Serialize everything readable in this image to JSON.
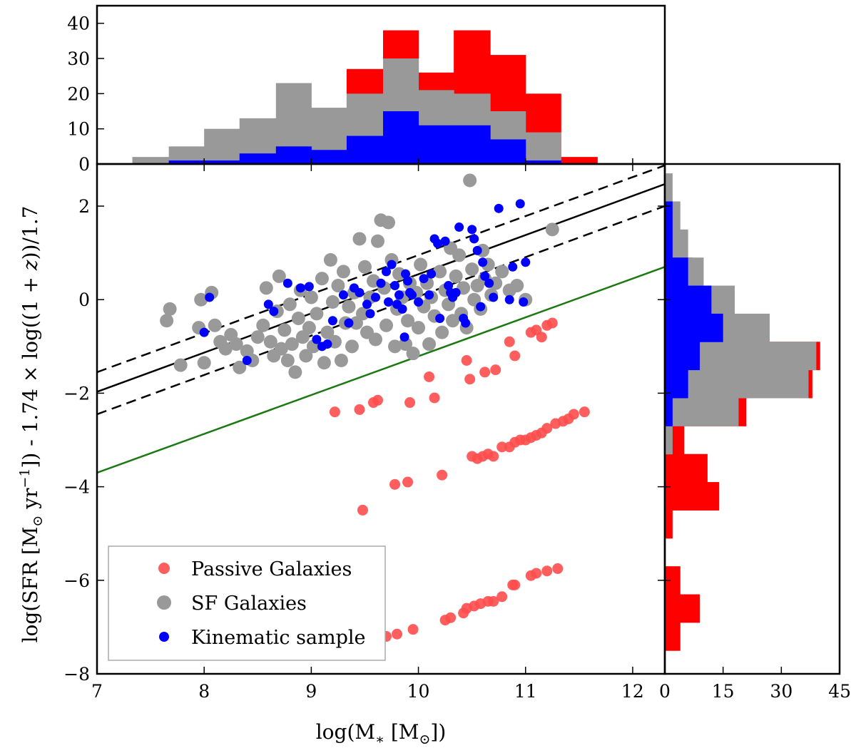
{
  "chart_data": {
    "type": "scatter",
    "title": "",
    "xlabel": "log(M_* [M_sun])",
    "ylabel": "log(SFR [M_sun yr^-1]) - 1.74 × log((1 + z))/1.7",
    "xlabel_parts": {
      "pre": "log(M",
      "sub": "∗",
      "mid": " [M",
      "sub2": "⊙",
      "post": "])"
    },
    "ylabel_parts": {
      "pre": "log(SFR [M",
      "sub": "⊙",
      "mid": " yr",
      "sup": "−1",
      "post": "]) - 1.74 × log((1 + ",
      "z": "z",
      "end": "))/1.7"
    },
    "xlim": [
      7,
      12.3
    ],
    "ylim": [
      -8,
      2.9
    ],
    "xticks": [
      7,
      8,
      9,
      10,
      11,
      12
    ],
    "xtick_labels": [
      "7",
      "8",
      "9",
      "10",
      "11",
      "12"
    ],
    "yticks": [
      2,
      0,
      -2,
      -4,
      -6,
      -8
    ],
    "ytick_labels": [
      "2",
      "0",
      "−2",
      "−4",
      "−6",
      "−8"
    ],
    "colors": {
      "passive": "#ff4d4d",
      "sf": "#999999",
      "kinematic": "#0000ff",
      "main_sequence": "#000000",
      "cut": "#1a7a10",
      "hist_red": "#ff0000",
      "hist_gray": "#999999",
      "hist_blue": "#0000ff"
    },
    "legend": {
      "position": "lower-left",
      "entries": [
        {
          "label": "Passive Galaxies",
          "color": "#ff4d4d"
        },
        {
          "label": "SF Galaxies",
          "color": "#999999"
        },
        {
          "label": "Kinematic sample",
          "color": "#0000ff"
        }
      ]
    },
    "lines": [
      {
        "name": "main-sequence",
        "style": "solid",
        "color": "#000000",
        "points": [
          [
            7,
            -1.97
          ],
          [
            12.3,
            2.47
          ]
        ]
      },
      {
        "name": "main-sequence-upper",
        "style": "dashed",
        "color": "#000000",
        "points": [
          [
            7,
            -1.55
          ],
          [
            12.3,
            2.87
          ]
        ]
      },
      {
        "name": "main-sequence-lower",
        "style": "dashed",
        "color": "#000000",
        "points": [
          [
            7,
            -2.45
          ],
          [
            12.3,
            2.0
          ]
        ]
      },
      {
        "name": "passive-cut",
        "style": "solid",
        "color": "#1a7a10",
        "points": [
          [
            7,
            -3.7
          ],
          [
            12.3,
            0.7
          ]
        ]
      }
    ],
    "series": [
      {
        "name": "SF Galaxies",
        "color": "#999999",
        "points": [
          [
            7.65,
            -0.45
          ],
          [
            7.68,
            -0.2
          ],
          [
            7.78,
            -1.4
          ],
          [
            7.95,
            -0.6
          ],
          [
            7.97,
            0.0
          ],
          [
            8.0,
            -1.35
          ],
          [
            8.07,
            0.15
          ],
          [
            8.1,
            -0.55
          ],
          [
            8.15,
            -0.9
          ],
          [
            8.2,
            -1.05
          ],
          [
            8.25,
            -0.75
          ],
          [
            8.3,
            -0.95
          ],
          [
            8.33,
            -1.45
          ],
          [
            8.4,
            -1.1
          ],
          [
            8.45,
            -1.3
          ],
          [
            8.5,
            -0.8
          ],
          [
            8.55,
            -0.55
          ],
          [
            8.58,
            0.25
          ],
          [
            8.62,
            -0.9
          ],
          [
            8.65,
            -1.2
          ],
          [
            8.68,
            -0.25
          ],
          [
            8.7,
            0.5
          ],
          [
            8.72,
            -1.05
          ],
          [
            8.75,
            -0.65
          ],
          [
            8.78,
            -1.3
          ],
          [
            8.8,
            -0.1
          ],
          [
            8.82,
            -0.95
          ],
          [
            8.85,
            -1.55
          ],
          [
            8.88,
            -0.4
          ],
          [
            8.9,
            0.2
          ],
          [
            8.92,
            -0.8
          ],
          [
            8.95,
            -1.2
          ],
          [
            8.98,
            -0.6
          ],
          [
            9.0,
            0.05
          ],
          [
            9.02,
            -1.0
          ],
          [
            9.05,
            -0.3
          ],
          [
            9.1,
            0.45
          ],
          [
            9.12,
            -1.35
          ],
          [
            9.15,
            -0.7
          ],
          [
            9.18,
            0.85
          ],
          [
            9.2,
            -0.05
          ],
          [
            9.22,
            -0.9
          ],
          [
            9.25,
            0.3
          ],
          [
            9.28,
            -1.3
          ],
          [
            9.3,
            0.6
          ],
          [
            9.32,
            -0.5
          ],
          [
            9.35,
            -0.15
          ],
          [
            9.38,
            -1.0
          ],
          [
            9.4,
            0.15
          ],
          [
            9.42,
            -0.5
          ],
          [
            9.45,
            1.3
          ],
          [
            9.48,
            -0.3
          ],
          [
            9.5,
            0.7
          ],
          [
            9.52,
            -0.7
          ],
          [
            9.55,
            0.05
          ],
          [
            9.58,
            0.4
          ],
          [
            9.6,
            -0.85
          ],
          [
            9.62,
            1.25
          ],
          [
            9.65,
            1.7
          ],
          [
            9.68,
            0.25
          ],
          [
            9.7,
            -0.55
          ],
          [
            9.72,
            1.65
          ],
          [
            9.75,
            0.85
          ],
          [
            9.78,
            -1.0
          ],
          [
            9.8,
            -0.2
          ],
          [
            9.82,
            0.55
          ],
          [
            9.85,
            0.05
          ],
          [
            9.88,
            -0.95
          ],
          [
            9.9,
            -0.45
          ],
          [
            9.92,
            0.35
          ],
          [
            9.95,
            -1.15
          ],
          [
            9.98,
            0.15
          ],
          [
            10.0,
            -0.6
          ],
          [
            10.02,
            0.75
          ],
          [
            10.05,
            -0.15
          ],
          [
            10.08,
            0.35
          ],
          [
            10.1,
            -0.95
          ],
          [
            10.12,
            0.05
          ],
          [
            10.15,
            -0.35
          ],
          [
            10.2,
            0.6
          ],
          [
            10.22,
            -0.7
          ],
          [
            10.25,
            0.2
          ],
          [
            10.28,
            -0.1
          ],
          [
            10.3,
            1.1
          ],
          [
            10.32,
            -0.45
          ],
          [
            10.35,
            0.5
          ],
          [
            10.38,
            0.95
          ],
          [
            10.4,
            -0.3
          ],
          [
            10.42,
            0.25
          ],
          [
            10.45,
            -0.6
          ],
          [
            10.48,
            2.55
          ],
          [
            10.5,
            0.65
          ],
          [
            10.52,
            0.0
          ],
          [
            10.55,
            0.3
          ],
          [
            10.58,
            -0.2
          ],
          [
            10.6,
            1.05
          ],
          [
            10.62,
            0.45
          ],
          [
            10.65,
            0.75
          ],
          [
            10.68,
            0.1
          ],
          [
            10.72,
            0.35
          ],
          [
            10.78,
            0.6
          ],
          [
            10.85,
            0.2
          ],
          [
            10.92,
            0.3
          ],
          [
            11.0,
            0.0
          ],
          [
            11.25,
            1.5
          ]
        ]
      },
      {
        "name": "Kinematic sample",
        "color": "#0000ff",
        "points": [
          [
            8.0,
            -0.7
          ],
          [
            8.05,
            0.05
          ],
          [
            8.4,
            -1.3
          ],
          [
            8.6,
            -0.1
          ],
          [
            8.65,
            -0.25
          ],
          [
            8.78,
            0.35
          ],
          [
            8.9,
            0.25
          ],
          [
            8.98,
            0.28
          ],
          [
            9.05,
            -0.85
          ],
          [
            9.1,
            -1.0
          ],
          [
            9.15,
            -0.95
          ],
          [
            9.2,
            -0.45
          ],
          [
            9.3,
            0.1
          ],
          [
            9.35,
            -0.5
          ],
          [
            9.4,
            0.25
          ],
          [
            9.45,
            0.15
          ],
          [
            9.52,
            -0.1
          ],
          [
            9.55,
            -0.3
          ],
          [
            9.6,
            0.05
          ],
          [
            9.65,
            0.35
          ],
          [
            9.7,
            0.6
          ],
          [
            9.72,
            -0.05
          ],
          [
            9.75,
            0.75
          ],
          [
            9.78,
            0.3
          ],
          [
            9.8,
            -0.1
          ],
          [
            9.82,
            0.1
          ],
          [
            9.85,
            -0.2
          ],
          [
            9.87,
            -0.8
          ],
          [
            9.88,
            0.55
          ],
          [
            9.9,
            0.4
          ],
          [
            9.92,
            0.15
          ],
          [
            9.94,
            0.1
          ],
          [
            10.0,
            -0.05
          ],
          [
            10.05,
            0.45
          ],
          [
            10.1,
            0.1
          ],
          [
            10.12,
            0.55
          ],
          [
            10.15,
            1.3
          ],
          [
            10.18,
            1.2
          ],
          [
            10.2,
            -0.4
          ],
          [
            10.25,
            1.25
          ],
          [
            10.28,
            0.3
          ],
          [
            10.3,
            0.15
          ],
          [
            10.32,
            0.05
          ],
          [
            10.35,
            0.15
          ],
          [
            10.38,
            1.55
          ],
          [
            10.42,
            -0.4
          ],
          [
            10.44,
            -0.5
          ],
          [
            10.5,
            1.5
          ],
          [
            10.52,
            1.3
          ],
          [
            10.55,
            1.05
          ],
          [
            10.58,
            -0.15
          ],
          [
            10.6,
            0.8
          ],
          [
            10.62,
            0.5
          ],
          [
            10.66,
            0.35
          ],
          [
            10.7,
            0.05
          ],
          [
            10.75,
            1.95
          ],
          [
            10.85,
            0.0
          ],
          [
            10.88,
            0.7
          ],
          [
            10.95,
            2.05
          ],
          [
            10.98,
            -0.05
          ],
          [
            11.0,
            0.8
          ]
        ]
      },
      {
        "name": "Passive Galaxies",
        "color": "#ff4d4d",
        "points": [
          [
            9.22,
            -2.4
          ],
          [
            9.45,
            -2.35
          ],
          [
            9.48,
            -4.5
          ],
          [
            9.58,
            -2.2
          ],
          [
            9.62,
            -2.15
          ],
          [
            9.7,
            -7.2
          ],
          [
            9.78,
            -3.95
          ],
          [
            9.8,
            -7.15
          ],
          [
            9.9,
            -3.9
          ],
          [
            9.92,
            -2.2
          ],
          [
            9.95,
            -7.05
          ],
          [
            10.1,
            -1.65
          ],
          [
            10.15,
            -2.1
          ],
          [
            10.22,
            -3.75
          ],
          [
            10.25,
            -6.85
          ],
          [
            10.3,
            -6.8
          ],
          [
            10.45,
            -1.3
          ],
          [
            10.48,
            -1.7
          ],
          [
            10.5,
            -3.35
          ],
          [
            10.55,
            -3.4
          ],
          [
            10.6,
            -3.35
          ],
          [
            10.62,
            -1.55
          ],
          [
            10.65,
            -3.3
          ],
          [
            10.7,
            -3.35
          ],
          [
            10.72,
            -1.5
          ],
          [
            10.78,
            -3.15
          ],
          [
            10.85,
            -3.15
          ],
          [
            10.9,
            -3.05
          ],
          [
            10.95,
            -3.0
          ],
          [
            11.0,
            -3.0
          ],
          [
            11.05,
            -2.95
          ],
          [
            11.1,
            -2.9
          ],
          [
            11.15,
            -2.85
          ],
          [
            11.2,
            -2.75
          ],
          [
            11.28,
            -2.65
          ],
          [
            11.35,
            -2.6
          ],
          [
            11.4,
            -2.55
          ],
          [
            10.42,
            -6.7
          ],
          [
            10.45,
            -6.6
          ],
          [
            10.52,
            -6.55
          ],
          [
            10.58,
            -6.5
          ],
          [
            10.65,
            -6.45
          ],
          [
            10.7,
            -6.45
          ],
          [
            10.78,
            -6.35
          ],
          [
            10.88,
            -6.1
          ],
          [
            10.9,
            -6.1
          ],
          [
            11.05,
            -5.9
          ],
          [
            11.1,
            -5.85
          ],
          [
            11.2,
            -5.8
          ],
          [
            11.3,
            -5.75
          ],
          [
            10.85,
            -0.9
          ],
          [
            10.9,
            -1.2
          ],
          [
            11.05,
            -0.7
          ],
          [
            11.1,
            -0.65
          ],
          [
            11.15,
            -0.8
          ],
          [
            11.2,
            -0.55
          ],
          [
            11.25,
            -0.5
          ],
          [
            11.45,
            -2.45
          ],
          [
            11.55,
            -2.4
          ]
        ]
      }
    ],
    "top_histogram": {
      "bin_edges": [
        7.33,
        7.67,
        8.0,
        8.33,
        8.67,
        9.0,
        9.33,
        9.67,
        10.0,
        10.33,
        10.67,
        11.0,
        11.33,
        11.67
      ],
      "red_total": [
        0,
        0,
        0,
        0,
        0,
        0,
        27,
        38,
        26,
        38,
        31,
        20,
        2
      ],
      "gray_total": [
        2,
        5,
        10,
        13,
        23,
        16,
        20,
        30,
        21,
        20,
        15,
        9,
        0
      ],
      "blue_total": [
        0,
        1,
        1,
        3,
        5,
        4,
        8,
        15,
        11,
        11,
        7,
        1,
        0
      ],
      "ylim": [
        0,
        45
      ],
      "yticks": [
        0,
        10,
        20,
        30,
        40
      ],
      "ytick_labels": [
        "0",
        "10",
        "20",
        "30",
        "40"
      ]
    },
    "right_histogram": {
      "bin_edges": [
        2.7,
        2.1,
        1.5,
        0.9,
        0.3,
        -0.3,
        -0.9,
        -1.5,
        -2.1,
        -2.7,
        -3.3,
        -3.9,
        -4.5,
        -5.1,
        -5.7,
        -6.3,
        -6.9,
        -7.5
      ],
      "red_total": [
        0,
        1,
        2,
        7,
        12,
        16,
        40,
        38,
        21,
        5,
        11,
        14,
        2,
        0,
        4,
        9,
        4
      ],
      "gray_total": [
        2,
        4,
        6,
        10,
        18,
        27,
        39,
        37,
        19,
        2,
        0,
        0,
        0,
        0,
        0,
        0,
        0
      ],
      "blue_total": [
        0,
        2,
        2,
        6,
        12,
        15,
        9,
        6,
        2,
        0,
        0,
        0,
        0,
        0,
        0,
        0,
        0
      ],
      "xlim": [
        0,
        45
      ],
      "xticks": [
        0,
        15,
        30,
        45
      ],
      "xtick_labels": [
        "0",
        "15",
        "30",
        "45"
      ]
    }
  }
}
